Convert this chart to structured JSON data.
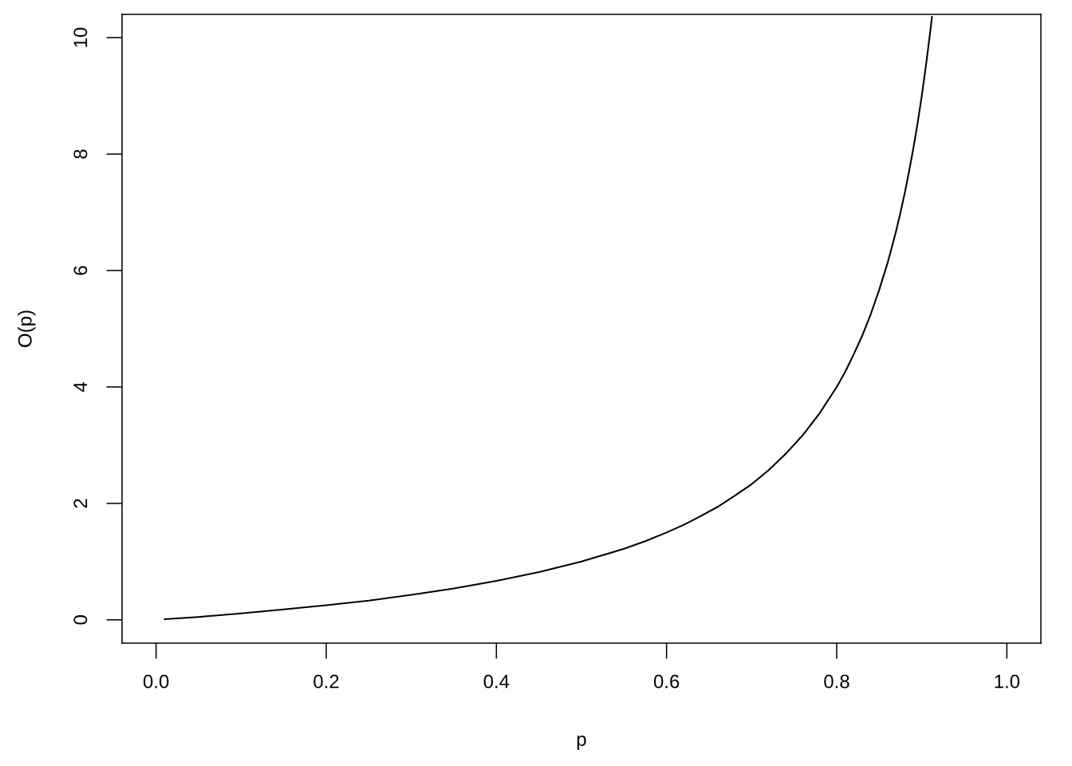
{
  "chart_data": {
    "type": "line",
    "xlabel": "p",
    "ylabel": "O(p)",
    "series": [
      {
        "color": "#000000",
        "line_style": "solid",
        "x": [
          0.01,
          0.05,
          0.1,
          0.15,
          0.2,
          0.25,
          0.3,
          0.35,
          0.4,
          0.45,
          0.5,
          0.525,
          0.55,
          0.575,
          0.6,
          0.62,
          0.64,
          0.66,
          0.68,
          0.7,
          0.72,
          0.74,
          0.76,
          0.78,
          0.8,
          0.81,
          0.82,
          0.83,
          0.84,
          0.85,
          0.86,
          0.865,
          0.87,
          0.875,
          0.88,
          0.885,
          0.89,
          0.895,
          0.9,
          0.905,
          0.91,
          0.912
        ],
        "values": [
          0.01,
          0.05,
          0.11,
          0.18,
          0.25,
          0.33,
          0.43,
          0.54,
          0.67,
          0.82,
          1.0,
          1.11,
          1.22,
          1.35,
          1.5,
          1.63,
          1.78,
          1.94,
          2.13,
          2.33,
          2.57,
          2.85,
          3.17,
          3.55,
          4.0,
          4.26,
          4.56,
          4.88,
          5.25,
          5.67,
          6.14,
          6.41,
          6.69,
          7.0,
          7.33,
          7.7,
          8.09,
          8.52,
          9.0,
          9.53,
          10.11,
          10.36
        ]
      }
    ],
    "xlim": [
      -0.04,
      1.04
    ],
    "ylim": [
      -0.4,
      10.4
    ],
    "xticks": [
      {
        "value": 0,
        "label": "0.0"
      },
      {
        "value": 0.2,
        "label": "0.2"
      },
      {
        "value": 0.4,
        "label": "0.4"
      },
      {
        "value": 0.6,
        "label": "0.6"
      },
      {
        "value": 0.8,
        "label": "0.8"
      },
      {
        "value": 1.0,
        "label": "1.0"
      }
    ],
    "yticks": [
      0,
      2,
      4,
      6,
      8,
      10
    ]
  }
}
